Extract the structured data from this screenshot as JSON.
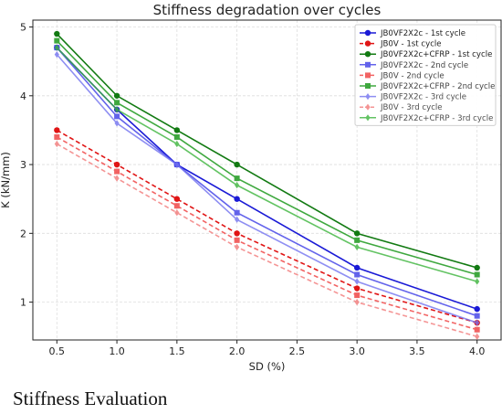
{
  "chart_data": {
    "type": "line",
    "title": "Stiffness degradation over cycles",
    "xlabel": "SD (%)",
    "ylabel": "K (kN/mm)",
    "x": [
      0.5,
      1.0,
      1.5,
      2.0,
      3.0,
      4.0
    ],
    "xlim": [
      0.3,
      4.2
    ],
    "ylim": [
      0.45,
      5.1
    ],
    "xticks": [
      0.5,
      1.0,
      1.5,
      2.0,
      2.5,
      3.0,
      3.5,
      4.0
    ],
    "xtick_labels": [
      "0.5",
      "1.0",
      "1.5",
      "2.0",
      "2.5",
      "3.0",
      "3.5",
      "4.0"
    ],
    "yticks": [
      1,
      2,
      3,
      4,
      5
    ],
    "ytick_labels": [
      "1",
      "2",
      "3",
      "4",
      "5"
    ],
    "grid": true,
    "legend_position": "top-right",
    "series": [
      {
        "name": "JB0VF2X2c - 1st cycle",
        "values": [
          4.7,
          3.8,
          3.0,
          2.5,
          1.5,
          0.9
        ],
        "color": "#1a1ad6",
        "dash": "solid",
        "marker": "circle",
        "opacity": 1.0
      },
      {
        "name": "JB0V - 1st cycle",
        "values": [
          3.5,
          3.0,
          2.5,
          2.0,
          1.2,
          0.7
        ],
        "color": "#e01515",
        "dash": "dashed",
        "marker": "circle",
        "opacity": 1.0
      },
      {
        "name": "JB0VF2X2c+CFRP - 1st cycle",
        "values": [
          4.9,
          4.0,
          3.5,
          3.0,
          2.0,
          1.5
        ],
        "color": "#127a12",
        "dash": "solid",
        "marker": "circle",
        "opacity": 1.0
      },
      {
        "name": "JB0VF2X2c - 2nd cycle",
        "values": [
          4.7,
          3.7,
          3.0,
          2.3,
          1.4,
          0.8
        ],
        "color": "#4848e8",
        "dash": "solid",
        "marker": "square",
        "opacity": 0.85
      },
      {
        "name": "JB0V - 2nd cycle",
        "values": [
          3.4,
          2.9,
          2.4,
          1.9,
          1.1,
          0.6
        ],
        "color": "#f04848",
        "dash": "dashed",
        "marker": "square",
        "opacity": 0.85
      },
      {
        "name": "JB0VF2X2c+CFRP - 2nd cycle",
        "values": [
          4.8,
          3.9,
          3.4,
          2.8,
          1.9,
          1.4
        ],
        "color": "#1e9a1e",
        "dash": "solid",
        "marker": "square",
        "opacity": 0.85
      },
      {
        "name": "JB0VF2X2c - 3rd cycle",
        "values": [
          4.6,
          3.6,
          3.0,
          2.2,
          1.3,
          0.7
        ],
        "color": "#7373f0",
        "dash": "solid",
        "marker": "diamond",
        "opacity": 0.8
      },
      {
        "name": "JB0V - 3rd cycle",
        "values": [
          3.3,
          2.8,
          2.3,
          1.8,
          1.0,
          0.5
        ],
        "color": "#f27a7a",
        "dash": "dashed",
        "marker": "diamond",
        "opacity": 0.8
      },
      {
        "name": "JB0VF2X2c+CFRP - 3rd cycle",
        "values": [
          4.7,
          3.8,
          3.3,
          2.7,
          1.8,
          1.3
        ],
        "color": "#3db53d",
        "dash": "solid",
        "marker": "diamond",
        "opacity": 0.8
      }
    ]
  },
  "caption": "Stiffness Evaluation"
}
